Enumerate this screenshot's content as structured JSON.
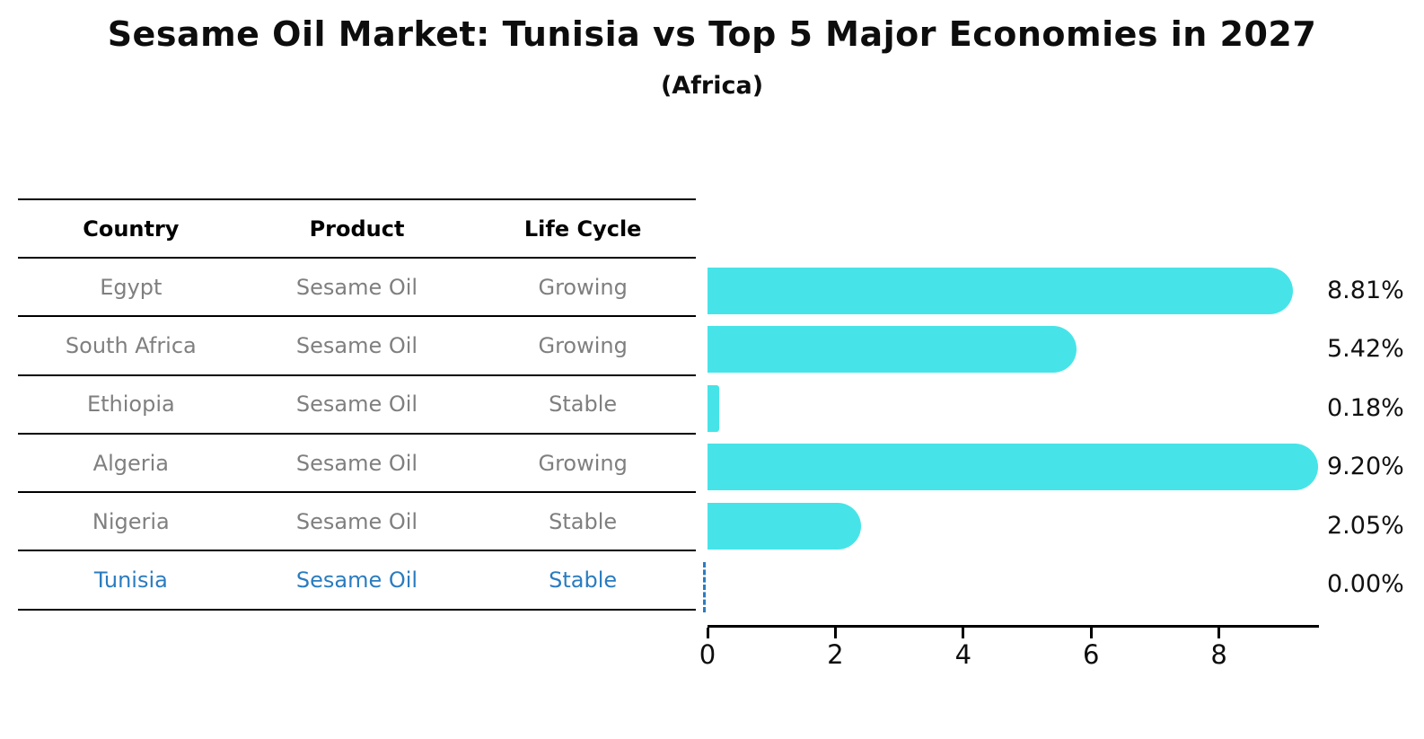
{
  "title": "Sesame Oil Market: Tunisia vs Top 5 Major Economies in 2027",
  "subtitle": "(Africa)",
  "table": {
    "headers": [
      "Country",
      "Product",
      "Life Cycle"
    ],
    "rows": [
      {
        "country": "Egypt",
        "product": "Sesame Oil",
        "life_cycle": "Growing",
        "highlighted": false
      },
      {
        "country": "South Africa",
        "product": "Sesame Oil",
        "life_cycle": "Growing",
        "highlighted": false
      },
      {
        "country": "Ethiopia",
        "product": "Sesame Oil",
        "life_cycle": "Stable",
        "highlighted": false
      },
      {
        "country": "Algeria",
        "product": "Sesame Oil",
        "life_cycle": "Growing",
        "highlighted": false
      },
      {
        "country": "Nigeria",
        "product": "Sesame Oil",
        "life_cycle": "Stable",
        "highlighted": false
      },
      {
        "country": "Tunisia",
        "product": "Sesame Oil",
        "life_cycle": "Stable",
        "highlighted": true
      }
    ]
  },
  "chart_data": {
    "type": "bar",
    "orientation": "horizontal",
    "title": "Sesame Oil Market: Tunisia vs Top 5 Major Economies in 2027",
    "subtitle": "(Africa)",
    "categories": [
      "Egypt",
      "South Africa",
      "Ethiopia",
      "Algeria",
      "Nigeria",
      "Tunisia"
    ],
    "values": [
      8.81,
      5.42,
      0.18,
      9.2,
      2.05,
      0.0
    ],
    "value_labels": [
      "8.81%",
      "5.42%",
      "0.18%",
      "9.20%",
      "2.05%",
      "0.00%"
    ],
    "x_ticks": [
      0,
      2,
      4,
      6,
      8
    ],
    "xlim": [
      0,
      9.6
    ],
    "xlabel": "",
    "ylabel": "",
    "grid": false,
    "legend": false,
    "bar_color": "#46e4e8",
    "highlight_category": "Tunisia",
    "zero_value_marker": "dashed vertical line at 0"
  },
  "colors": {
    "bar": "#46e4e8",
    "highlight_text": "#2a7cc0",
    "table_text": "#7f7f7f",
    "header_text": "#000000",
    "axis": "#000000"
  }
}
